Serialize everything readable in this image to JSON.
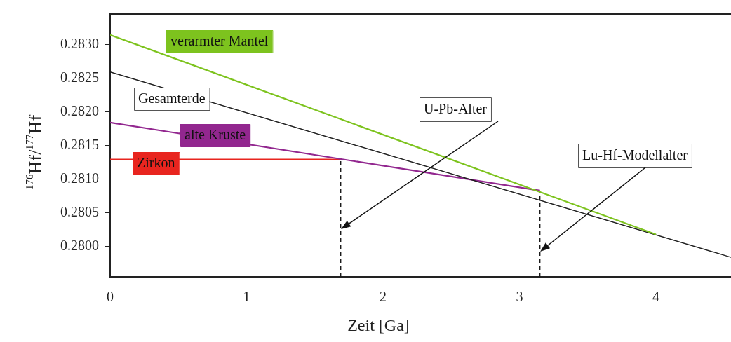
{
  "chart_data": {
    "type": "line",
    "xlabel": "Zeit [Ga]",
    "ylabel": "$^{176}$Hf/$^{177}$Hf",
    "marker": "none",
    "line_style": "solid",
    "xlim": [
      0,
      4.55
    ],
    "ylim": [
      0.27955,
      0.28345
    ],
    "xticks": [
      0,
      1,
      2,
      3,
      4
    ],
    "yticks": [
      {
        "value": 0.28,
        "label": "0.2800"
      },
      {
        "value": 0.2805,
        "label": "0.2805"
      },
      {
        "value": 0.281,
        "label": "0.2810"
      },
      {
        "value": 0.2815,
        "label": "0.2815"
      },
      {
        "value": 0.282,
        "label": "0.2820"
      },
      {
        "value": 0.2825,
        "label": "0.2825"
      },
      {
        "value": 0.283,
        "label": "0.2830"
      }
    ],
    "series": [
      {
        "name": "verarmter Mantel",
        "color": "#7dc31e",
        "x": [
          0,
          4
        ],
        "values": [
          0.28314,
          0.28018
        ]
      },
      {
        "name": "Gesamterde",
        "color": "#1a1a1a",
        "x": [
          0,
          4.55
        ],
        "values": [
          0.28259,
          0.27984
        ]
      },
      {
        "name": "alte Kruste",
        "color": "#92278f",
        "x": [
          0,
          3.15
        ],
        "values": [
          0.28184,
          0.28083
        ]
      },
      {
        "name": "Zirkon",
        "color": "#e8251f",
        "x": [
          0,
          1.69
        ],
        "values": [
          0.28129,
          0.28129
        ]
      },
      {
        "color": "#1a1a1a",
        "line_style": "dashed",
        "x": [
          1.69,
          1.69
        ],
        "values": [
          0.27955,
          0.28129
        ]
      },
      {
        "color": "#1a1a1a",
        "line_style": "dashed",
        "x": [
          3.15,
          3.15
        ],
        "values": [
          0.27955,
          0.28083
        ]
      }
    ],
    "annotations": [
      "U-Pb-Alter",
      "Lu-Hf-Modellalter"
    ]
  }
}
